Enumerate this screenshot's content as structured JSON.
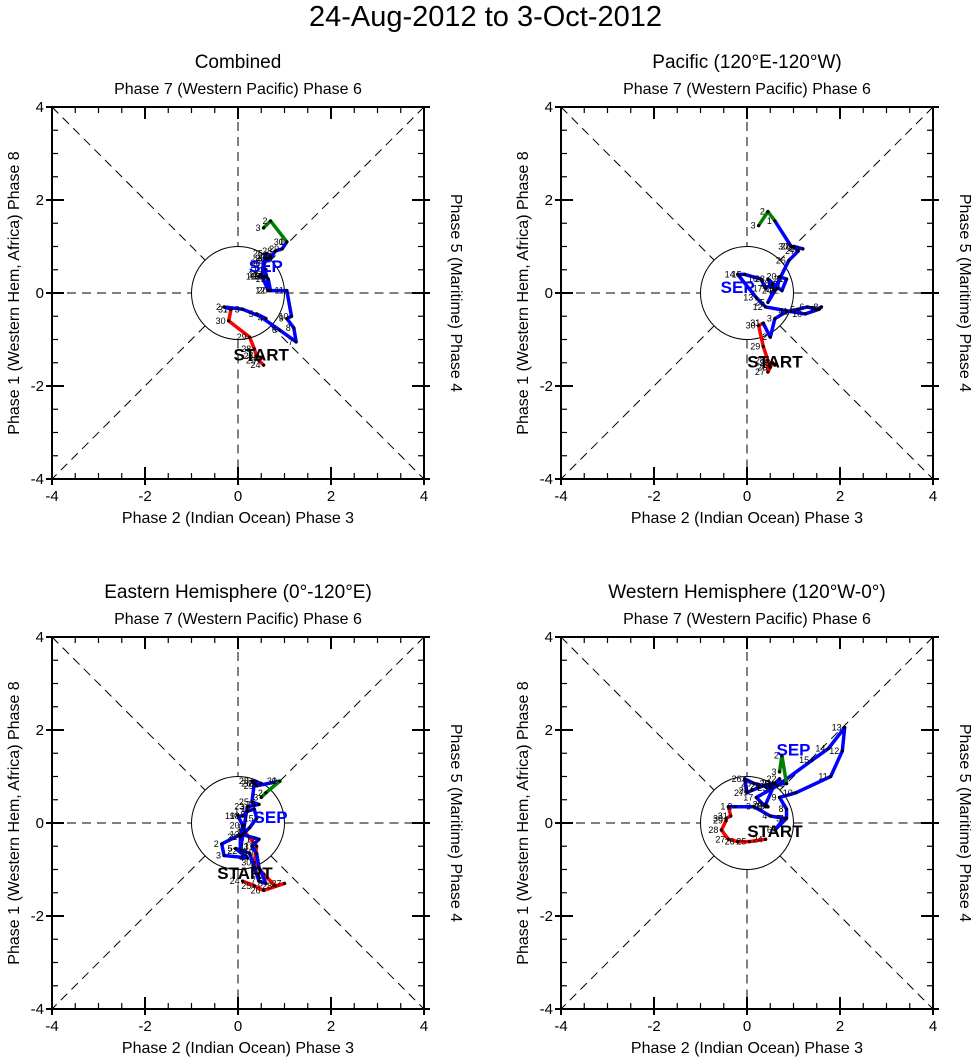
{
  "title": "24-Aug-2012 to 3-Oct-2012",
  "axis_labels": {
    "top": "Phase 7 (Western Pacific) Phase 6",
    "bottom": "Phase 2 (Indian Ocean) Phase 3",
    "left": "Phase 1 (Western Hem, Africa) Phase 8",
    "right": "Phase 5 (Maritime) Phase 4"
  },
  "colors": {
    "aug": "#ff0000",
    "sep": "#0000ff",
    "oct": "#008000",
    "axis": "#000000"
  },
  "chart_data": [
    {
      "type": "line",
      "title": "Combined",
      "xlabel": "Phase 2 (Indian Ocean) Phase 3",
      "ylabel": "Phase 1 (Western Hem, Africa) Phase 8",
      "xlim": [
        -4,
        4
      ],
      "ylim": [
        -4,
        4
      ],
      "xticks": [
        "-4",
        "-2",
        "0",
        "2",
        "4"
      ],
      "yticks": [
        "-4",
        "-2",
        "0",
        "2",
        "4"
      ],
      "annotations": [
        {
          "text": "START",
          "x": 0.5,
          "y": -1.45,
          "color": "#000000"
        },
        {
          "text": "SEP",
          "x": 0.6,
          "y": 0.45,
          "color": "#0000ff"
        }
      ],
      "series": [
        {
          "name": "Aug",
          "color": "#ff0000",
          "days": [
            24,
            25,
            26,
            27,
            28,
            29,
            30,
            31
          ],
          "x": [
            0.55,
            0.45,
            0.5,
            0.4,
            0.35,
            0.25,
            -0.2,
            -0.15
          ],
          "y": [
            -1.55,
            -1.45,
            -1.4,
            -1.35,
            -1.2,
            -0.95,
            -0.6,
            -0.35
          ]
        },
        {
          "name": "Sep",
          "color": "#0000ff",
          "days": [
            1,
            2,
            3,
            4,
            5,
            6,
            7,
            8,
            9,
            10,
            11,
            12,
            13,
            14,
            15,
            16,
            17,
            18,
            19,
            20,
            21,
            22,
            23,
            24,
            25,
            26,
            27,
            28,
            29,
            30
          ],
          "x": [
            -0.15,
            -0.3,
            0.1,
            0.6,
            0.4,
            0.9,
            1.25,
            1.2,
            1.05,
            1.15,
            1.05,
            0.65,
            0.5,
            0.6,
            0.55,
            0.45,
            0.5,
            0.6,
            0.65,
            0.7,
            0.55,
            0.6,
            0.65,
            0.7,
            0.6,
            0.55,
            0.7,
            0.8,
            0.95,
            1.05
          ],
          "y": [
            -0.35,
            -0.3,
            -0.35,
            -0.55,
            -0.45,
            -0.8,
            -1.05,
            -0.75,
            -0.55,
            -0.5,
            0.05,
            0.05,
            0.4,
            0.5,
            0.35,
            0.35,
            0.4,
            0.35,
            0.3,
            0.05,
            0.6,
            0.7,
            0.75,
            0.8,
            0.85,
            0.65,
            0.75,
            0.9,
            0.95,
            1.1
          ]
        },
        {
          "name": "Oct",
          "color": "#008000",
          "days": [
            1,
            2,
            3
          ],
          "x": [
            1.05,
            0.7,
            0.55
          ],
          "y": [
            1.1,
            1.55,
            1.4
          ]
        }
      ]
    },
    {
      "type": "line",
      "title": "Pacific (120°E-120°W)",
      "xlabel": "Phase 2 (Indian Ocean) Phase 3",
      "ylabel": "Phase 1 (Western Hem, Africa) Phase 8",
      "xlim": [
        -4,
        4
      ],
      "ylim": [
        -4,
        4
      ],
      "xticks": [
        "-4",
        "-2",
        "0",
        "2",
        "4"
      ],
      "yticks": [
        "-4",
        "-2",
        "0",
        "2",
        "4"
      ],
      "annotations": [
        {
          "text": "START",
          "x": 0.6,
          "y": -1.6,
          "color": "#000000"
        },
        {
          "text": "SEP",
          "x": -0.2,
          "y": 0.0,
          "color": "#0000ff"
        }
      ],
      "series": [
        {
          "name": "Aug",
          "color": "#ff0000",
          "days": [
            24,
            25,
            26,
            27,
            28,
            29,
            30,
            31
          ],
          "x": [
            0.6,
            0.55,
            0.5,
            0.45,
            0.45,
            0.35,
            0.25,
            0.35
          ],
          "y": [
            -1.55,
            -1.5,
            -1.6,
            -1.7,
            -1.45,
            -1.15,
            -0.7,
            -0.65
          ]
        },
        {
          "name": "Sep",
          "color": "#0000ff",
          "days": [
            1,
            2,
            3,
            4,
            5,
            6,
            7,
            8,
            9,
            10,
            11,
            12,
            13,
            14,
            15,
            16,
            17,
            18,
            19,
            20,
            21,
            22,
            23,
            24,
            25,
            26,
            27,
            28,
            29,
            30
          ],
          "x": [
            0.35,
            0.5,
            0.6,
            0.85,
            1.1,
            1.3,
            1.5,
            1.6,
            1.55,
            1.25,
            0.95,
            0.4,
            0.2,
            -0.2,
            -0.05,
            0.3,
            0.4,
            0.55,
            0.65,
            0.7,
            0.85,
            0.75,
            0.45,
            0.6,
            0.45,
            0.9,
            1.1,
            1.0,
            1.2,
            0.95
          ],
          "y": [
            -0.65,
            -0.95,
            -0.55,
            -0.4,
            -0.35,
            -0.3,
            -0.35,
            -0.3,
            -0.35,
            -0.45,
            -0.4,
            -0.3,
            -0.1,
            0.4,
            0.4,
            0.3,
            0.1,
            0.2,
            0.1,
            0.35,
            0.3,
            0.05,
            0.3,
            0.05,
            -0.2,
            0.7,
            0.9,
            1.0,
            0.95,
            1.0
          ]
        },
        {
          "name": "Oct",
          "color": "#008000",
          "days": [
            1,
            2,
            3
          ],
          "x": [
            0.6,
            0.45,
            0.25
          ],
          "y": [
            1.55,
            1.75,
            1.45
          ]
        }
      ]
    },
    {
      "type": "line",
      "title": "Eastern Hemisphere (0°-120°E)",
      "xlabel": "Phase 2 (Indian Ocean) Phase 3",
      "ylabel": "Phase 1 (Western Hem, Africa) Phase 8",
      "xlim": [
        -4,
        4
      ],
      "ylim": [
        -4,
        4
      ],
      "xticks": [
        "-4",
        "-2",
        "0",
        "2",
        "4"
      ],
      "yticks": [
        "-4",
        "-2",
        "0",
        "2",
        "4"
      ],
      "annotations": [
        {
          "text": "START",
          "x": 0.15,
          "y": -1.2,
          "color": "#000000"
        },
        {
          "text": "SEP",
          "x": 0.7,
          "y": 0.0,
          "color": "#0000ff"
        }
      ],
      "series": [
        {
          "name": "Aug",
          "color": "#ff0000",
          "days": [
            24,
            25,
            26,
            27,
            28,
            29,
            30,
            31
          ],
          "x": [
            0.1,
            0.35,
            0.55,
            1.0,
            0.8,
            0.55,
            0.35,
            0.4
          ],
          "y": [
            -1.25,
            -1.35,
            -1.45,
            -1.3,
            -1.35,
            -1.1,
            -0.85,
            -0.5
          ]
        },
        {
          "name": "Sep",
          "color": "#0000ff",
          "days": [
            1,
            2,
            3,
            4,
            5,
            6,
            7,
            8,
            9,
            10,
            11,
            12,
            13,
            14,
            15,
            16,
            17,
            18,
            19,
            20,
            21,
            22,
            23,
            24,
            25,
            26,
            27,
            28,
            29,
            30
          ],
          "x": [
            0.15,
            -0.35,
            -0.3,
            0.2,
            -0.05,
            0.25,
            0.45,
            0.6,
            0.45,
            0.4,
            0.3,
            0.45,
            0.1,
            0.25,
            0.4,
            0.35,
            0.2,
            0.1,
            0.0,
            0.1,
            0.05,
            0.05,
            0.2,
            0.45,
            0.3,
            0.35,
            0.5,
            0.3,
            0.4,
            0.9
          ],
          "y": [
            -0.2,
            -0.45,
            -0.7,
            -0.75,
            -0.55,
            -0.65,
            -1.25,
            -1.3,
            -0.95,
            -0.65,
            -0.5,
            -0.35,
            -0.25,
            -0.1,
            0.1,
            0.3,
            0.25,
            0.15,
            0.15,
            -0.05,
            -0.3,
            -0.6,
            0.35,
            0.4,
            0.45,
            0.85,
            0.85,
            0.9,
            0.8,
            0.9
          ]
        },
        {
          "name": "Oct",
          "color": "#008000",
          "days": [
            1,
            2,
            3
          ],
          "x": [
            0.9,
            0.6,
            0.5
          ],
          "y": [
            0.9,
            0.65,
            0.55
          ]
        }
      ]
    },
    {
      "type": "line",
      "title": "Western Hemisphere (120°W-0°)",
      "xlabel": "Phase 2 (Indian Ocean) Phase 3",
      "ylabel": "Phase 1 (Western Hem, Africa) Phase 8",
      "xlim": [
        -4,
        4
      ],
      "ylim": [
        -4,
        4
      ],
      "xticks": [
        "-4",
        "-2",
        "0",
        "2",
        "4"
      ],
      "yticks": [
        "-4",
        "-2",
        "0",
        "2",
        "4"
      ],
      "annotations": [
        {
          "text": "START",
          "x": 0.6,
          "y": -0.3,
          "color": "#000000"
        },
        {
          "text": "SEP",
          "x": 1.0,
          "y": 1.45,
          "color": "#0000ff"
        }
      ],
      "series": [
        {
          "name": "Aug",
          "color": "#ff0000",
          "days": [
            24,
            25,
            26,
            27,
            28,
            29,
            30,
            31
          ],
          "x": [
            0.4,
            0.05,
            -0.2,
            -0.4,
            -0.55,
            -0.45,
            -0.45,
            -0.35
          ],
          "y": [
            -0.35,
            -0.4,
            -0.4,
            -0.35,
            -0.15,
            0.05,
            0.1,
            0.15
          ]
        },
        {
          "name": "Sep",
          "color": "#0000ff",
          "days": [
            1,
            2,
            3,
            4,
            5,
            6,
            7,
            8,
            9,
            10,
            11,
            12,
            13,
            14,
            15,
            16,
            17,
            18,
            19,
            20,
            21,
            22,
            23,
            24,
            25,
            26,
            27,
            28,
            29,
            30
          ],
          "x": [
            -0.4,
            -0.25,
            0.15,
            0.5,
            0.8,
            0.6,
            0.85,
            0.85,
            0.7,
            1.05,
            1.8,
            2.05,
            2.1,
            1.75,
            1.4,
            0.65,
            0.2,
            0.4,
            0.45,
            0.4,
            0.6,
            0.7,
            0.5,
            0.35,
            0.15,
            -0.05,
            0.0,
            0.1,
            0.35,
            0.55
          ],
          "y": [
            0.35,
            0.35,
            0.35,
            0.15,
            0.1,
            -0.15,
            0.1,
            0.3,
            0.55,
            0.65,
            1.0,
            1.55,
            2.05,
            1.6,
            1.35,
            0.8,
            0.55,
            0.35,
            0.35,
            0.4,
            0.85,
            0.95,
            0.75,
            0.8,
            0.85,
            0.95,
            0.65,
            0.7,
            0.8,
            0.85
          ]
        },
        {
          "name": "Oct",
          "color": "#008000",
          "days": [
            1,
            2,
            3
          ],
          "x": [
            0.85,
            0.75,
            0.7
          ],
          "y": [
            0.85,
            1.45,
            1.1
          ]
        }
      ]
    }
  ]
}
